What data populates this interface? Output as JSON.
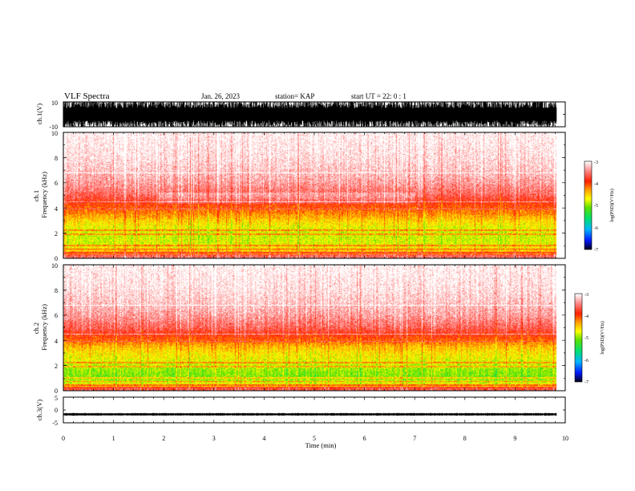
{
  "header": {
    "title": "VLF Spectra",
    "date": "Jan. 26, 2023",
    "station": "station= KAP",
    "start_ut": "start  UT =   22: 0  : 1"
  },
  "chart_data": [
    {
      "type": "line",
      "panel": "ch1-waveform",
      "ylabel": "ch.1(V)",
      "ylim": [
        -10,
        10
      ],
      "y_tick_labels": [
        "10",
        "-10"
      ],
      "x_range_min": [
        0,
        9.83
      ],
      "series": [
        {
          "amplitude_envelope_V": [
            -10,
            10
          ]
        }
      ],
      "color": "#000000"
    },
    {
      "type": "heatmap",
      "panel": "ch1-spectrogram",
      "ylabel": "ch.1\nFrequency (kHz)",
      "ylim_khz": [
        0,
        10
      ],
      "y_tick_labels": [
        "0",
        "2",
        "4",
        "6",
        "8",
        "10"
      ],
      "x_range_min": [
        0,
        9.83
      ],
      "log_psd_profile_by_frequency_khz": {
        "frequency_khz": [
          0.0,
          0.5,
          1.0,
          1.5,
          2.0,
          2.5,
          3.0,
          3.5,
          4.0,
          4.5,
          5.0,
          6.0,
          7.0,
          8.0,
          9.0,
          10.0
        ],
        "log_psd": [
          -4.1,
          -4.4,
          -4.75,
          -4.8,
          -4.8,
          -4.7,
          -4.5,
          -4.25,
          -4.05,
          -3.85,
          -3.6,
          -3.35,
          -3.2,
          -3.1,
          -3.05,
          -3.0
        ]
      },
      "quieter_interval_min": [
        1.9,
        7.0
      ],
      "colorbar": {
        "label": "log(PSD)(V²/Hz)",
        "range": [
          -7,
          -3
        ],
        "tick_labels": [
          "-3",
          "-4",
          "-5",
          "-6",
          "-7"
        ]
      }
    },
    {
      "type": "heatmap",
      "panel": "ch2-spectrogram",
      "ylabel": "ch.2\nFrequency (kHz)",
      "ylim_khz": [
        0,
        10
      ],
      "y_tick_labels": [
        "0",
        "2",
        "4",
        "6",
        "8",
        "10"
      ],
      "x_range_min": [
        0,
        9.83
      ],
      "log_psd_profile_by_frequency_khz": {
        "frequency_khz": [
          0.0,
          0.5,
          1.0,
          1.5,
          2.0,
          2.5,
          3.0,
          3.5,
          4.0,
          4.5,
          5.0,
          6.0,
          7.0,
          8.0,
          9.0,
          10.0
        ],
        "log_psd": [
          -4.2,
          -4.7,
          -5.05,
          -5.0,
          -4.85,
          -4.7,
          -4.6,
          -4.4,
          -4.1,
          -3.85,
          -3.6,
          -3.35,
          -3.2,
          -3.1,
          -3.05,
          -3.0
        ]
      },
      "colorbar": {
        "label": "log(PSD)(V²/Hz)",
        "range": [
          -7,
          -3
        ],
        "tick_labels": [
          "-3",
          "-4",
          "-5",
          "-6",
          "-7"
        ]
      }
    },
    {
      "type": "line",
      "panel": "ch3-waveform",
      "ylabel": "ch.3(V)",
      "ylim": [
        -5,
        5
      ],
      "y_tick_labels": [
        "5",
        "0",
        "-5"
      ],
      "x_range_min": [
        0,
        9.83
      ],
      "series": [
        {
          "level_V": -1.7,
          "amplitude_V": 0.5
        }
      ],
      "color": "#000000"
    }
  ],
  "x_axis": {
    "label": "Time (min)",
    "range": [
      0,
      10
    ],
    "tick_labels": [
      "0",
      "1",
      "2",
      "3",
      "4",
      "5",
      "6",
      "7",
      "8",
      "9",
      "10"
    ]
  },
  "colormap": {
    "stops": [
      {
        "v": -7.0,
        "color": "#000020"
      },
      {
        "v": -6.6,
        "color": "#0018ff"
      },
      {
        "v": -6.1,
        "color": "#00b4ff"
      },
      {
        "v": -5.6,
        "color": "#00e070"
      },
      {
        "v": -5.1,
        "color": "#5ce000"
      },
      {
        "v": -4.7,
        "color": "#ffff00"
      },
      {
        "v": -4.3,
        "color": "#ffa000"
      },
      {
        "v": -3.9,
        "color": "#ff1e00"
      },
      {
        "v": -3.4,
        "color": "#ff9090"
      },
      {
        "v": -3.0,
        "color": "#ffffff"
      }
    ]
  }
}
